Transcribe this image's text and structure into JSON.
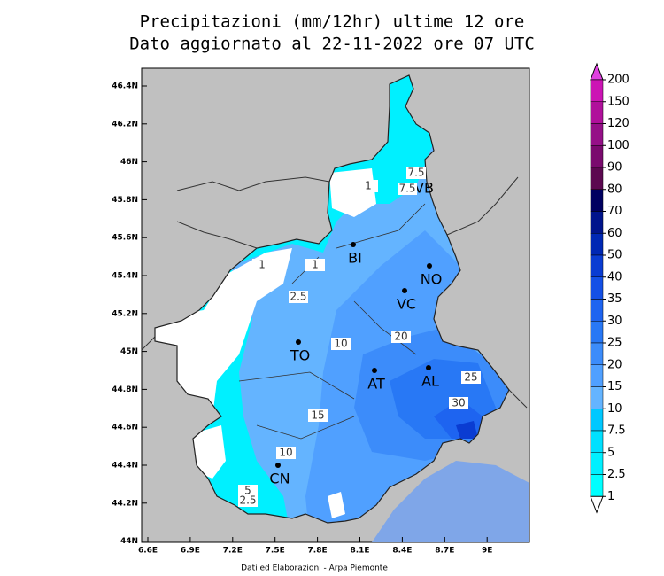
{
  "header": {
    "title_line1": "Precipitazioni (mm/12hr) ultime 12 ore",
    "title_line2": "Dato aggiornato al 22-11-2022 ore 07 UTC"
  },
  "lat_ticks": [
    "46.4N",
    "46.2N",
    "46N",
    "45.8N",
    "45.6N",
    "45.4N",
    "45.2N",
    "45N",
    "44.8N",
    "44.6N",
    "44.4N",
    "44.2N",
    "44N"
  ],
  "lon_ticks": [
    "6.6E",
    "6.9E",
    "7.2E",
    "7.5E",
    "7.8E",
    "8.1E",
    "8.4E",
    "8.7E",
    "9E"
  ],
  "cities": [
    "VB",
    "BI",
    "NO",
    "VC",
    "TO",
    "AT",
    "AL",
    "CN"
  ],
  "contour_labels": [
    "7.5",
    "7.5",
    "1",
    "1",
    "1",
    "2.5",
    "10",
    "20",
    "15",
    "25",
    "30",
    "10",
    "5",
    "2.5"
  ],
  "colorbar": {
    "labels": [
      200,
      150,
      120,
      100,
      90,
      80,
      70,
      60,
      50,
      40,
      35,
      30,
      25,
      20,
      15,
      10,
      7.5,
      5,
      2.5,
      1
    ],
    "colors": [
      "#e040e0",
      "#cc14b4",
      "#b0109b",
      "#951087",
      "#7a0a6e",
      "#5c0850",
      "#000060",
      "#00148c",
      "#0028b4",
      "#0a3cd2",
      "#1450e6",
      "#1e64f0",
      "#2878f5",
      "#3c8cfa",
      "#50a0ff",
      "#64b4ff",
      "#00c8ff",
      "#00e0ff",
      "#00f0ff",
      "#00ffff",
      "#ffffff"
    ]
  },
  "footer": "Dati ed Elaborazioni - Arpa Piemonte"
}
